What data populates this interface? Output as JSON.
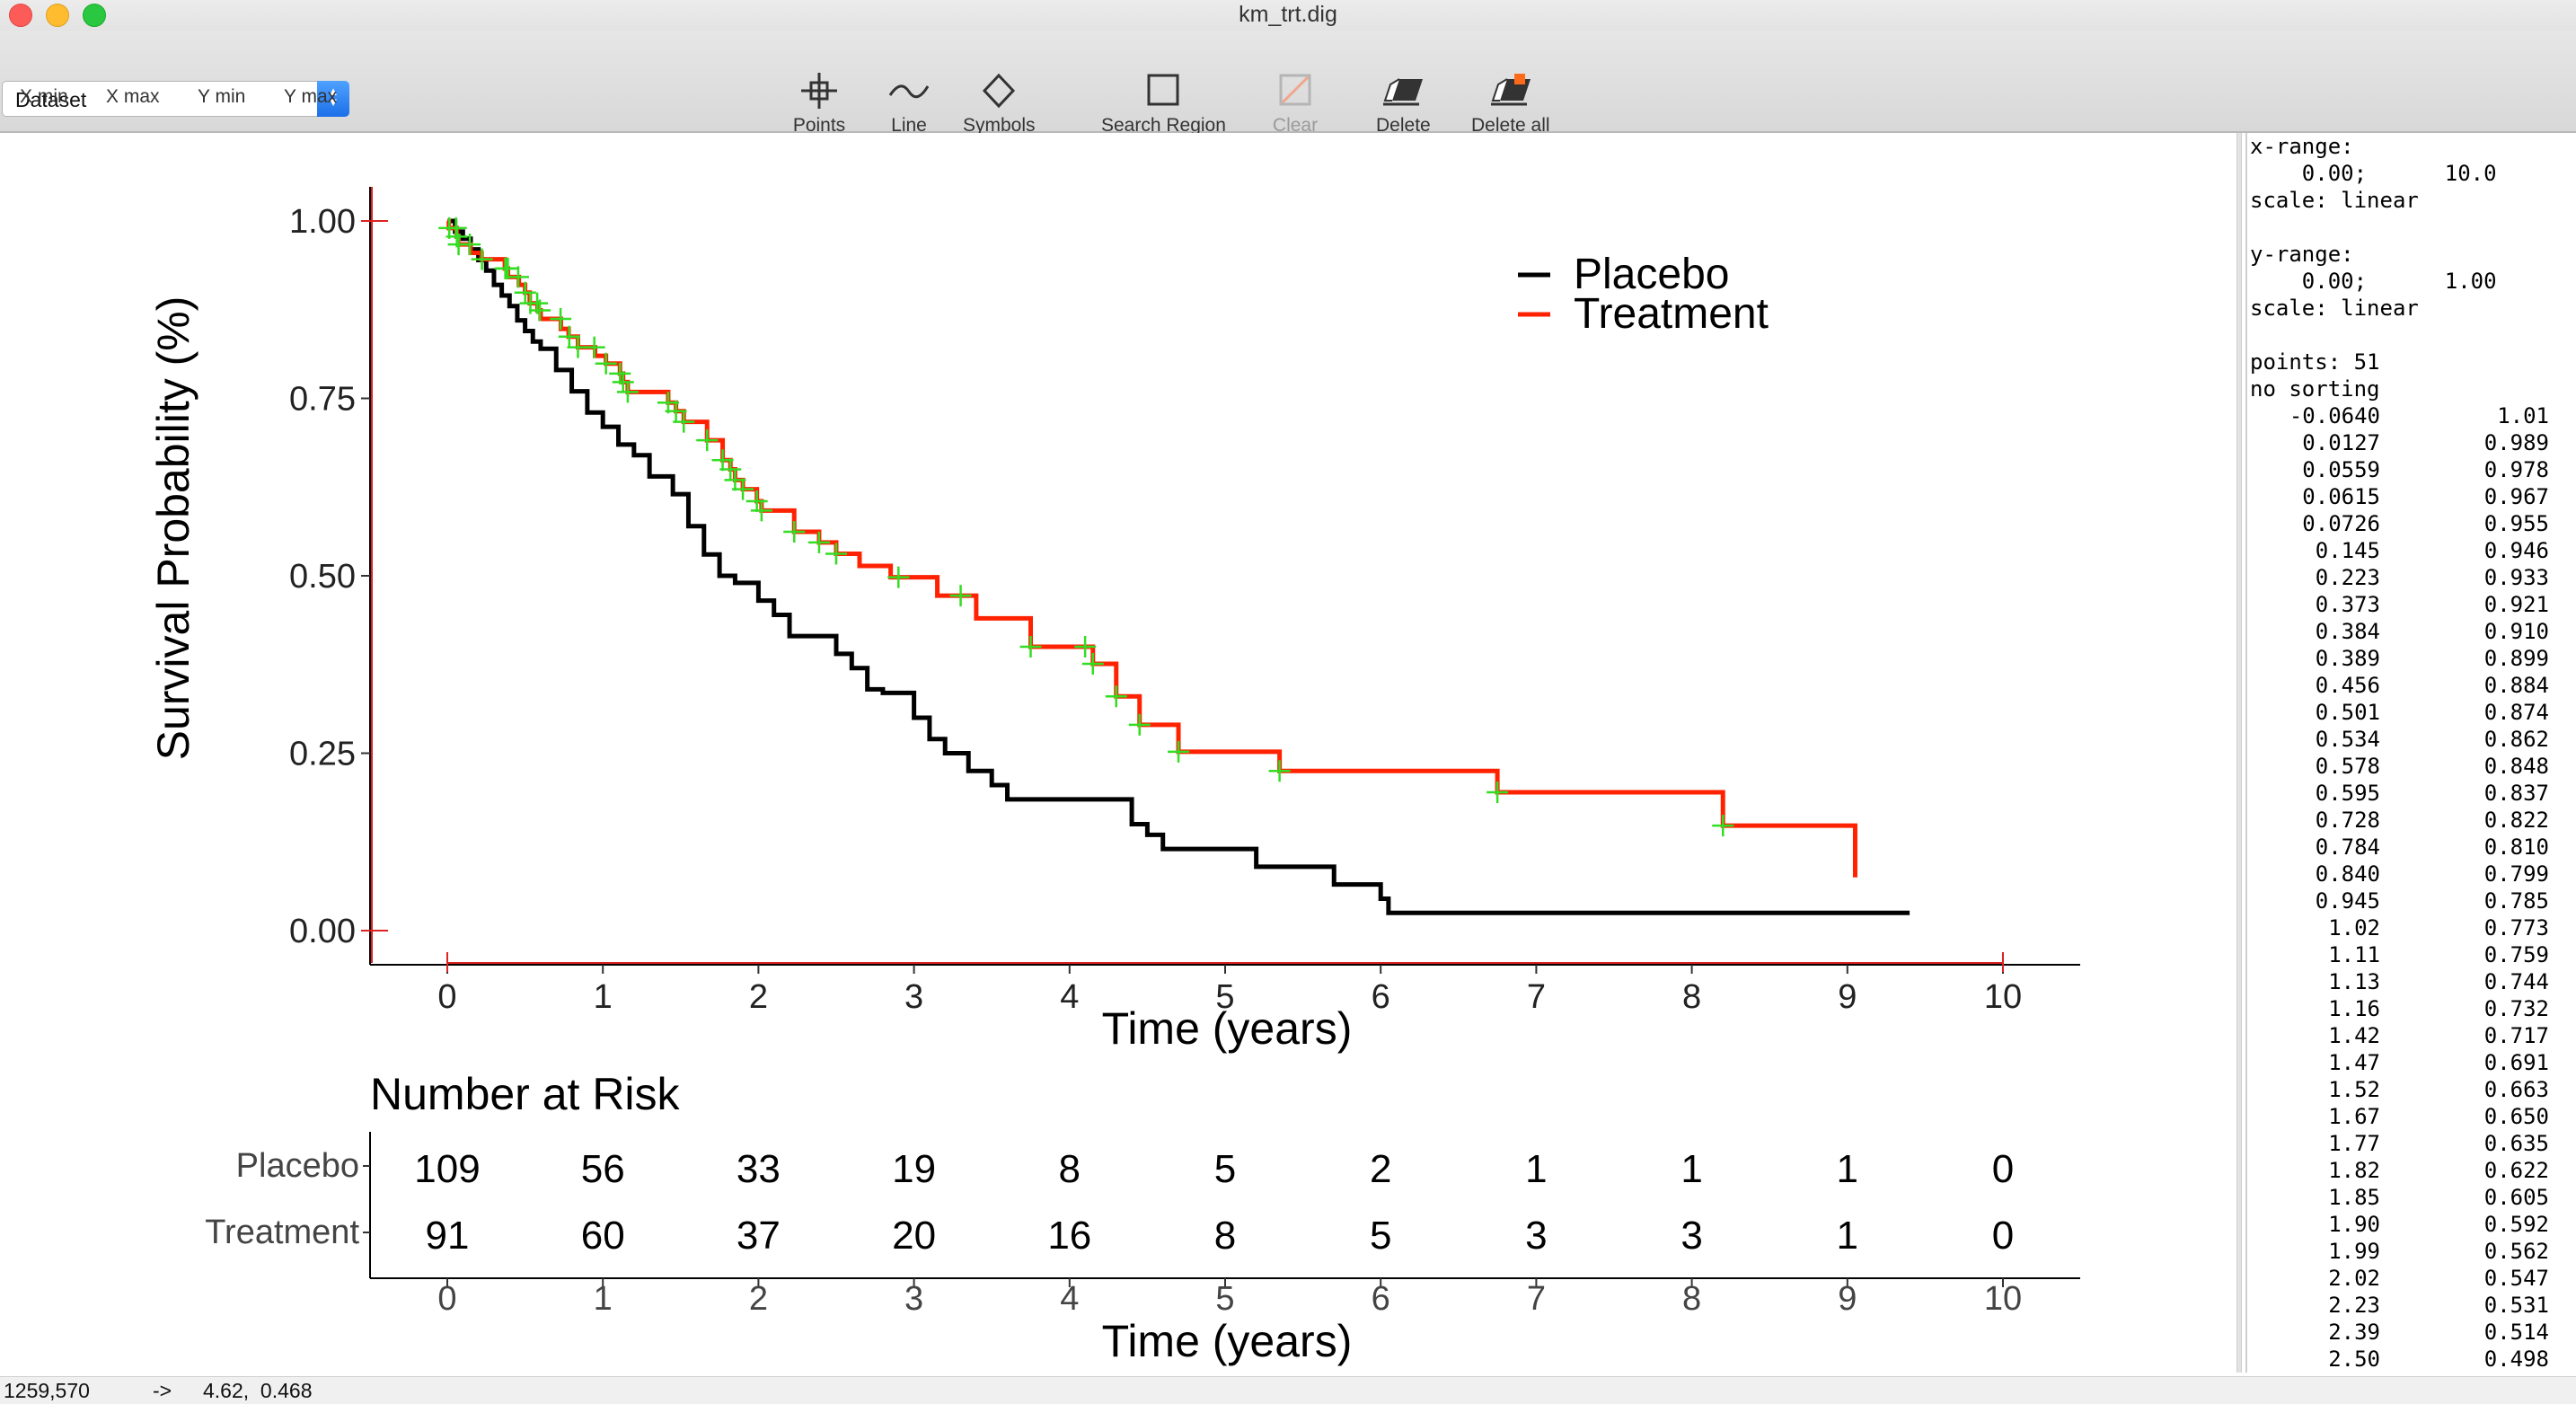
{
  "window": {
    "title": "km_trt.dig"
  },
  "toolbar": {
    "dataset_label": "Dataset",
    "axis_buttons": [
      "X min",
      "X max",
      "Y min",
      "Y max"
    ],
    "tools": [
      {
        "label": "Points",
        "icon": "crosshair-icon",
        "enabled": true
      },
      {
        "label": "Line",
        "icon": "tilde-line-icon",
        "enabled": true
      },
      {
        "label": "Symbols",
        "icon": "diamond-icon",
        "enabled": true
      },
      {
        "label": "Search Region",
        "icon": "square-region-icon",
        "enabled": true
      },
      {
        "label": "Clear",
        "icon": "clear-icon",
        "enabled": false
      },
      {
        "label": "Delete",
        "icon": "eraser-icon",
        "enabled": true
      },
      {
        "label": "Delete all",
        "icon": "eraser-all-icon",
        "enabled": true
      }
    ]
  },
  "colors": {
    "placebo": "#000000",
    "treatment": "#ff2200",
    "digitized_points": "#33dd22",
    "axis_markers": "#dd2222"
  },
  "chart_data": [
    {
      "type": "line",
      "subtype": "kaplan-meier step",
      "title": "",
      "xlabel": "Time (years)",
      "ylabel": "Survival Probability (%)",
      "xlim": [
        -0.5,
        10.5
      ],
      "ylim": [
        0,
        1.05
      ],
      "x_ticks": [
        "0",
        "1",
        "2",
        "3",
        "4",
        "5",
        "6",
        "7",
        "8",
        "9",
        "10"
      ],
      "y_ticks": [
        "0.00",
        "0.25",
        "0.50",
        "0.75",
        "1.00"
      ],
      "legend_position": "top-right",
      "series": [
        {
          "name": "Placebo",
          "color": "#000000",
          "x": [
            0,
            0.05,
            0.1,
            0.15,
            0.2,
            0.25,
            0.3,
            0.35,
            0.4,
            0.45,
            0.5,
            0.55,
            0.6,
            0.7,
            0.8,
            0.9,
            1.0,
            1.1,
            1.2,
            1.3,
            1.45,
            1.55,
            1.65,
            1.75,
            1.85,
            2.0,
            2.1,
            2.2,
            2.5,
            2.6,
            2.7,
            2.8,
            3.0,
            3.1,
            3.2,
            3.35,
            3.5,
            3.6,
            3.75,
            4.4,
            4.5,
            4.6,
            5.2,
            5.7,
            6.0,
            6.05,
            9.4
          ],
          "y": [
            1.0,
            0.985,
            0.975,
            0.96,
            0.945,
            0.93,
            0.91,
            0.895,
            0.88,
            0.86,
            0.845,
            0.83,
            0.82,
            0.79,
            0.76,
            0.73,
            0.71,
            0.685,
            0.67,
            0.64,
            0.615,
            0.57,
            0.53,
            0.5,
            0.49,
            0.465,
            0.445,
            0.415,
            0.39,
            0.37,
            0.34,
            0.335,
            0.3,
            0.27,
            0.25,
            0.225,
            0.205,
            0.185,
            0.185,
            0.15,
            0.135,
            0.115,
            0.09,
            0.065,
            0.045,
            0.025,
            0.025
          ]
        },
        {
          "name": "Treatment",
          "color": "#ff2200",
          "x": [
            0,
            0.01,
            0.06,
            0.07,
            0.15,
            0.22,
            0.37,
            0.39,
            0.46,
            0.5,
            0.53,
            0.58,
            0.6,
            0.73,
            0.78,
            0.84,
            0.95,
            1.02,
            1.11,
            1.13,
            1.16,
            1.42,
            1.47,
            1.52,
            1.67,
            1.77,
            1.82,
            1.85,
            1.9,
            1.99,
            2.02,
            2.23,
            2.39,
            2.5,
            2.65,
            2.85,
            3.15,
            3.4,
            3.75,
            4.15,
            4.3,
            4.45,
            4.7,
            5.35,
            6.75,
            8.2,
            9.05
          ],
          "y": [
            1.0,
            0.99,
            0.978,
            0.967,
            0.955,
            0.946,
            0.933,
            0.921,
            0.91,
            0.899,
            0.884,
            0.874,
            0.862,
            0.848,
            0.837,
            0.822,
            0.81,
            0.799,
            0.785,
            0.773,
            0.759,
            0.744,
            0.732,
            0.717,
            0.691,
            0.663,
            0.65,
            0.635,
            0.622,
            0.605,
            0.592,
            0.562,
            0.547,
            0.531,
            0.514,
            0.498,
            0.472,
            0.44,
            0.4,
            0.376,
            0.33,
            0.29,
            0.252,
            0.225,
            0.195,
            0.148,
            0.075
          ]
        }
      ],
      "censor_marks_x": [
        0.0127,
        0.0559,
        0.0615,
        0.0726,
        0.145,
        0.223,
        0.373,
        0.384,
        0.389,
        0.456,
        0.501,
        0.534,
        0.578,
        0.595,
        0.728,
        0.784,
        0.84,
        0.945,
        1.02,
        1.11,
        1.13,
        1.16,
        1.42,
        1.47,
        1.52,
        1.67,
        1.77,
        1.82,
        1.85,
        1.9,
        1.99,
        2.02,
        2.23,
        2.39,
        2.5,
        2.9,
        3.3,
        3.75,
        4.1,
        4.15,
        4.3,
        4.45,
        4.7,
        5.35,
        6.75,
        8.2
      ]
    },
    {
      "type": "table",
      "title": "Number at Risk",
      "xlabel": "Time (years)",
      "x_ticks": [
        "0",
        "1",
        "2",
        "3",
        "4",
        "5",
        "6",
        "7",
        "8",
        "9",
        "10"
      ],
      "rows": [
        {
          "name": "Placebo",
          "values": [
            "109",
            "56",
            "33",
            "19",
            "8",
            "5",
            "2",
            "1",
            "1",
            "1",
            "0"
          ]
        },
        {
          "name": "Treatment",
          "values": [
            "91",
            "60",
            "37",
            "20",
            "16",
            "8",
            "5",
            "3",
            "3",
            "1",
            "0"
          ]
        }
      ]
    }
  ],
  "sidebar": {
    "x_range_label": "x-range:",
    "x_range_values": "    0.00;      10.0",
    "x_scale": "scale: linear",
    "y_range_label": "y-range:",
    "y_range_values": "    0.00;      1.00",
    "y_scale": "scale: linear",
    "points_label": "points: 51",
    "sorting_label": "no sorting",
    "points": [
      [
        "-0.0640",
        "1.01"
      ],
      [
        "0.0127",
        "0.989"
      ],
      [
        "0.0559",
        "0.978"
      ],
      [
        "0.0615",
        "0.967"
      ],
      [
        "0.0726",
        "0.955"
      ],
      [
        "0.145",
        "0.946"
      ],
      [
        "0.223",
        "0.933"
      ],
      [
        "0.373",
        "0.921"
      ],
      [
        "0.384",
        "0.910"
      ],
      [
        "0.389",
        "0.899"
      ],
      [
        "0.456",
        "0.884"
      ],
      [
        "0.501",
        "0.874"
      ],
      [
        "0.534",
        "0.862"
      ],
      [
        "0.578",
        "0.848"
      ],
      [
        "0.595",
        "0.837"
      ],
      [
        "0.728",
        "0.822"
      ],
      [
        "0.784",
        "0.810"
      ],
      [
        "0.840",
        "0.799"
      ],
      [
        "0.945",
        "0.785"
      ],
      [
        "1.02",
        "0.773"
      ],
      [
        "1.11",
        "0.759"
      ],
      [
        "1.13",
        "0.744"
      ],
      [
        "1.16",
        "0.732"
      ],
      [
        "1.42",
        "0.717"
      ],
      [
        "1.47",
        "0.691"
      ],
      [
        "1.52",
        "0.663"
      ],
      [
        "1.67",
        "0.650"
      ],
      [
        "1.77",
        "0.635"
      ],
      [
        "1.82",
        "0.622"
      ],
      [
        "1.85",
        "0.605"
      ],
      [
        "1.90",
        "0.592"
      ],
      [
        "1.99",
        "0.562"
      ],
      [
        "2.02",
        "0.547"
      ],
      [
        "2.23",
        "0.531"
      ],
      [
        "2.39",
        "0.514"
      ],
      [
        "2.50",
        "0.498"
      ]
    ]
  },
  "status": {
    "pixel": "1259,570",
    "arrow": "->",
    "value": "4.62,  0.468"
  }
}
